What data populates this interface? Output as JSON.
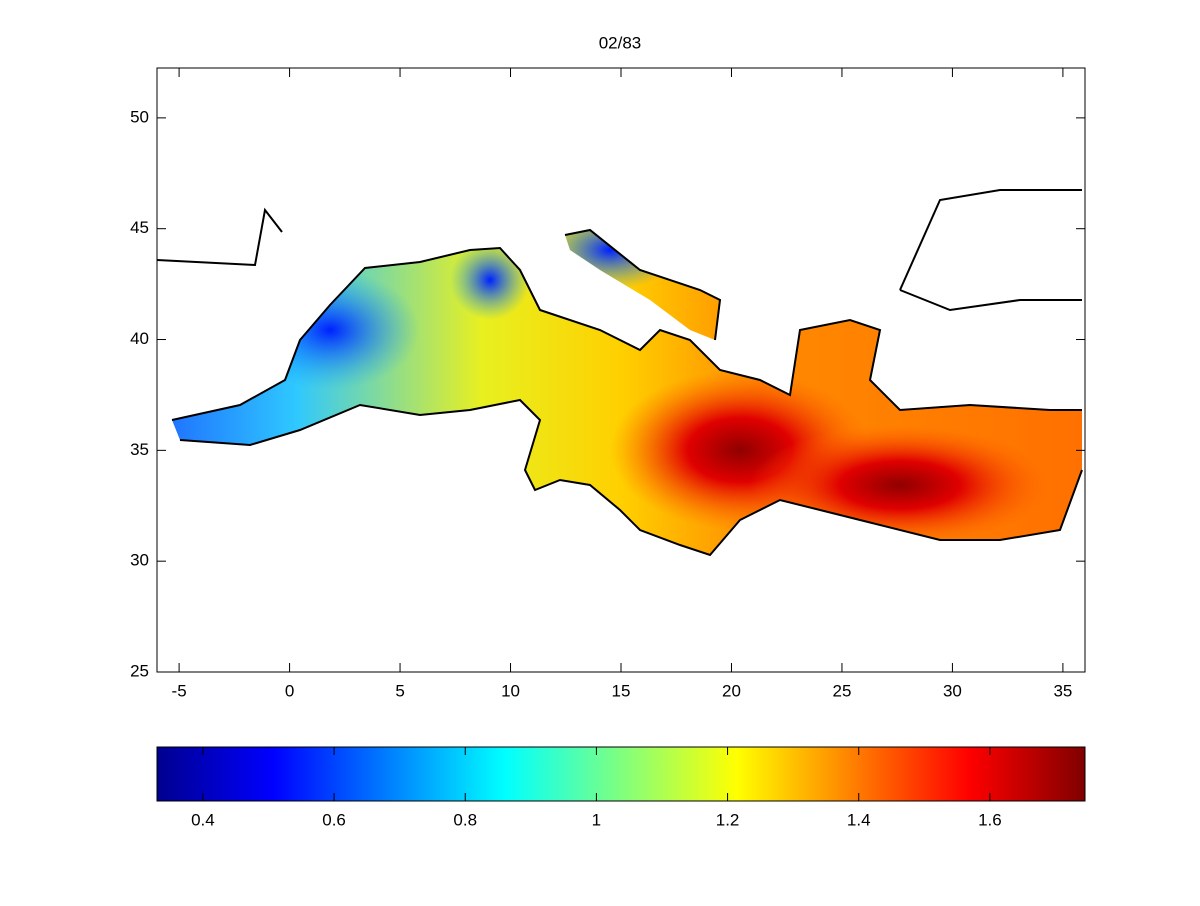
{
  "chart_data": {
    "type": "map",
    "title": "02/83",
    "xlim": [
      -6,
      36
    ],
    "xticks": [
      -5,
      0,
      5,
      10,
      15,
      20,
      25,
      30,
      35
    ],
    "ylim": [
      25,
      52.25
    ],
    "yticks": [
      25,
      30,
      35,
      40,
      45,
      50
    ],
    "colorbar": {
      "clim": [
        0.33,
        1.745
      ],
      "ticks": [
        0.4,
        0.6,
        0.8,
        1,
        1.2,
        1.4,
        1.6
      ]
    }
  }
}
